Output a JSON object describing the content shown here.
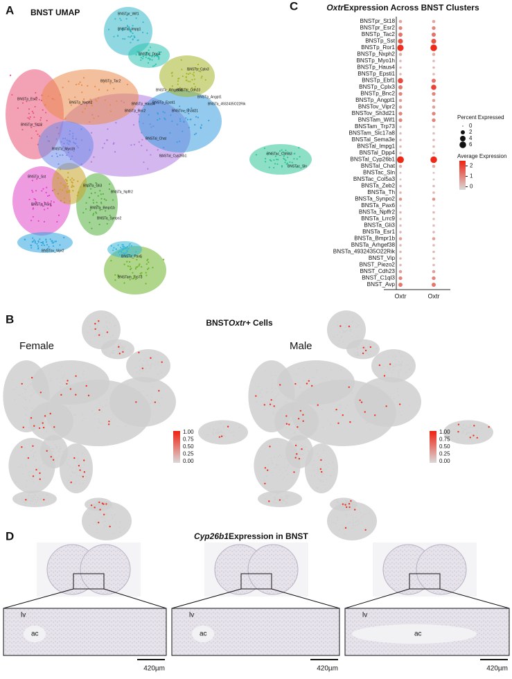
{
  "panels": {
    "a": {
      "label": "A",
      "title": "BNST UMAP",
      "clusters": [
        "BNSTpr_Wif1",
        "BNSTal_Impg1",
        "BNSTal_Dpp4",
        "BNSTp_Cplx3",
        "BNSTal_Cdh23",
        "BNSTp_Angpt1",
        "BNSTa_4932435O22Rik",
        "BNSTp_Tac2",
        "BNSTa_Arhgef38",
        "BNSTp_Esr2",
        "BNSTpr_St18",
        "BNSTp_Nxph2",
        "BNSTp_Bnc2",
        "BNSTp_Haus4",
        "BNSTp_Epsti1",
        "BNSTa_Myo1h",
        "BNSTov_Sh3d21",
        "BNSTal_Cyp26b1",
        "BNSTal_Chat",
        "BNSTac_Col5a3",
        "BNSTac_Sln",
        "BNSTp_Ror1",
        "BNSTp_Sst",
        "BNSTa_Synpo2",
        "BNSTa_Bmpr1b",
        "BNSTov_Vipr2",
        "BNSTa_Npffr2",
        "BNSTa_Pax6",
        "BNSTam_Trp73",
        "BNSTa_Gli3"
      ]
    },
    "b": {
      "label": "B",
      "title_pre": "BNST ",
      "title_gene": "Oxtr+",
      "title_post": " Cells",
      "female": "Female",
      "male": "Male",
      "scale_ticks": [
        "1.00",
        "0.75",
        "0.50",
        "0.25",
        "0.00"
      ]
    },
    "d": {
      "label": "D",
      "title_gene": "Cyp26b1",
      "title_post": " Expression in BNST",
      "lv": "lv",
      "ac": "ac",
      "scale": "420µm"
    }
  },
  "chart_data": {
    "type": "dot",
    "panel_label": "C",
    "title_gene": "Oxtr",
    "title_post": " Expression Across BNST Clusters",
    "categories": [
      "BNSTpr_St18",
      "BNSTpr_Esr2",
      "BNSTp_Tac2",
      "BNSTp_Sst",
      "BNSTp_Ror1",
      "BNSTp_Nxph2",
      "BNSTp_Myo1h",
      "BNSTp_Haus4",
      "BNSTp_Epsti1",
      "BNSTp_Ebf1",
      "BNSTp_Cplx3",
      "BNSTp_Bnc2",
      "BNSTp_Angpt1",
      "BNSTov_Vipr2",
      "BNSTov_Sh3d21",
      "BNSTam_Wif1",
      "BNSTam_Trp73",
      "BNSTam_Slc17a8",
      "BNSTal_Sema3e",
      "BNSTal_Impg1",
      "BNSTal_Dpp4",
      "BNSTal_Cyp26b1",
      "BNSTal_Chat",
      "BNSTac_Sln",
      "BNSTac_Col5a3",
      "BNSTa_Zeb2",
      "BNSTa_Th",
      "BNSTa_Synpo2",
      "BNSTa_Pax6",
      "BNSTa_Npffr2",
      "BNSTa_Lrrc9",
      "BNSTa_Gli3",
      "BNSTa_Esr1",
      "BNSTa_Bmpr1b",
      "BNSTa_Arhgef38",
      "BNSTa_4932435O22Rik",
      "BNST_Vip",
      "BNST_Piezo2",
      "BNST_Cdh23",
      "BNST_C1ql3",
      "BNST_Avp"
    ],
    "series": [
      {
        "name": "Oxtr",
        "pct": [
          1,
          1.5,
          2,
          3,
          5.5,
          1,
          0.5,
          0.5,
          0.5,
          3.5,
          2,
          1.5,
          1,
          1,
          1.5,
          1.5,
          0.5,
          0.5,
          0.5,
          0.5,
          0.5,
          6.5,
          1,
          0.3,
          0.3,
          0.5,
          0.5,
          1,
          0.3,
          0.5,
          0.5,
          0.5,
          0.5,
          1,
          0.5,
          0.5,
          0.5,
          0.5,
          1,
          1.5,
          2
        ],
        "avg": [
          0.5,
          1,
          1.3,
          1.8,
          2.3,
          0.4,
          0.2,
          0.2,
          0.2,
          1.9,
          1.2,
          1,
          0.6,
          0.6,
          1,
          1,
          0.1,
          0.1,
          0.2,
          0.2,
          0.2,
          2.4,
          0.4,
          0,
          0,
          0.2,
          0.2,
          0.8,
          0,
          0.2,
          0.1,
          0.1,
          0.2,
          0.6,
          0.2,
          0.2,
          0.2,
          0.2,
          0.6,
          1,
          1.2
        ]
      },
      {
        "name": "Oxtr",
        "pct": [
          1,
          1.5,
          2,
          3,
          6,
          1,
          0.5,
          0.5,
          0.5,
          2,
          3.5,
          1.5,
          1,
          1,
          1.5,
          1.5,
          0.5,
          0.5,
          0.5,
          0.5,
          0.5,
          6,
          1,
          0.3,
          0.3,
          0.5,
          0.5,
          1,
          0.3,
          0.5,
          0.5,
          0.5,
          0.5,
          1,
          0.5,
          0.5,
          0.5,
          0.5,
          1,
          1.5,
          2
        ],
        "avg": [
          0.5,
          1,
          1.3,
          1.8,
          2.4,
          0.4,
          0.2,
          0.2,
          0.2,
          1.3,
          2,
          1,
          0.6,
          0.6,
          1,
          1,
          0.1,
          0.1,
          0.2,
          0.2,
          0.2,
          2.4,
          0.4,
          0,
          0,
          0.2,
          0.2,
          0.8,
          0,
          0.2,
          0.1,
          0.1,
          0.2,
          0.6,
          0.2,
          0.2,
          0.2,
          0.2,
          0.6,
          1,
          1.2
        ]
      }
    ],
    "size_title": "Percent Expressed",
    "size_ticks": [
      0,
      2,
      4,
      6
    ],
    "color_title": "Average Expression",
    "color_lim": [
      -0.3,
      2.5
    ],
    "color_ticks": [
      2,
      1,
      0
    ],
    "colors": [
      "#d9d9d9",
      "#ee2211"
    ]
  }
}
